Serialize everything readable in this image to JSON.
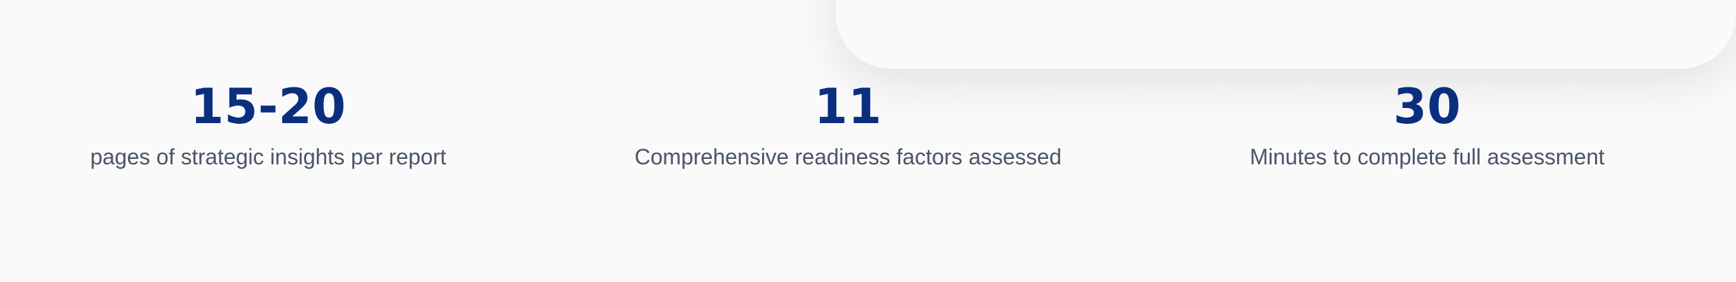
{
  "stats": [
    {
      "value": "15-20",
      "label": "pages of strategic insights per report"
    },
    {
      "value": "11",
      "label": "Comprehensive readiness factors assessed"
    },
    {
      "value": "30",
      "label": "Minutes to complete full assessment"
    }
  ],
  "colors": {
    "background": "#fafafb",
    "value_text": "#0b2f7f",
    "label_text": "#4a5565"
  }
}
